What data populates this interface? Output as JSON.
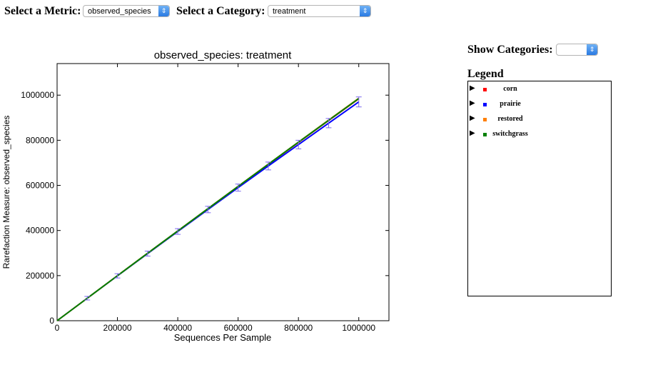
{
  "controls": {
    "metric_label": "Select a Metric:",
    "metric_value": "observed_species",
    "category_label": "Select a Category:",
    "category_value": "treatment",
    "show_categories_label": "Show Categories:",
    "show_categories_value": "",
    "legend_title": "Legend"
  },
  "legend": {
    "items": [
      {
        "label": "corn",
        "color": "#ff0000"
      },
      {
        "label": "prairie",
        "color": "#0000ff"
      },
      {
        "label": "restored",
        "color": "#ff7f00"
      },
      {
        "label": "switchgrass",
        "color": "#008000"
      }
    ]
  },
  "chart_data": {
    "type": "line",
    "title": "observed_species: treatment",
    "xlabel": "Sequences Per Sample",
    "ylabel": "Rarefaction Measure: observed_species",
    "xlim": [
      0,
      1100000
    ],
    "ylim": [
      0,
      1140000
    ],
    "xticks": [
      "0",
      "200000",
      "400000",
      "600000",
      "800000",
      "1000000"
    ],
    "yticks": [
      "0",
      "200000",
      "400000",
      "600000",
      "800000",
      "1000000"
    ],
    "x": [
      10,
      100000,
      200000,
      300000,
      400000,
      500000,
      600000,
      700000,
      800000,
      900000,
      1000000
    ],
    "series": [
      {
        "name": "corn",
        "color": "#ff0000",
        "values": [
          10,
          99900,
          199500,
          298800,
          397800,
          496500,
          595000,
          693000,
          790500,
          887500,
          984000
        ]
      },
      {
        "name": "prairie",
        "color": "#0000ff",
        "values": [
          10,
          99800,
          199000,
          297500,
          395500,
          493000,
          590000,
          686000,
          781000,
          876000,
          970000
        ]
      },
      {
        "name": "restored",
        "color": "#ff7f00",
        "values": [
          10,
          99900,
          199600,
          299000,
          398200,
          497000,
          595800,
          694200,
          792000,
          889500,
          986500
        ]
      },
      {
        "name": "switchgrass",
        "color": "#008000",
        "values": [
          10,
          99900,
          199500,
          298900,
          398000,
          496800,
          595400,
          693600,
          791300,
          888500,
          985200
        ]
      }
    ],
    "error_bar_color": "#7b68ee",
    "grid": false,
    "legend": "external"
  }
}
